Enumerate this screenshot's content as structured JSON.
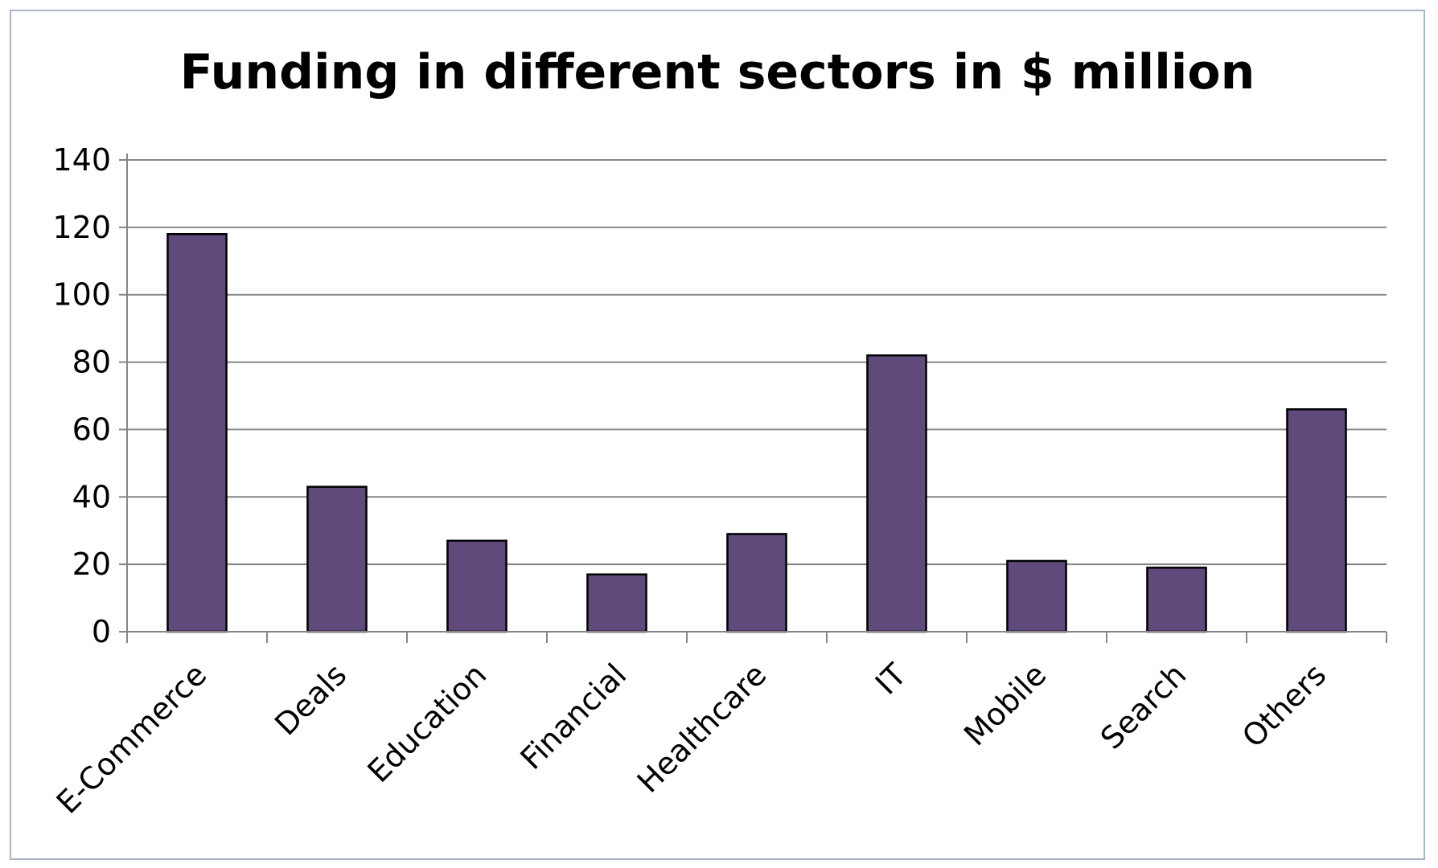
{
  "chart_data": {
    "type": "bar",
    "title": "Funding in different sectors in $ million",
    "xlabel": "",
    "ylabel": "",
    "categories": [
      "E-Commerce",
      "Deals",
      "Education",
      "Financial",
      "Healthcare",
      "IT",
      "Mobile",
      "Search",
      "Others"
    ],
    "values": [
      118,
      43,
      27,
      17,
      29,
      82,
      21,
      19,
      66
    ],
    "ylim": [
      0,
      140
    ],
    "yticks": [
      "0",
      "20",
      "40",
      "60",
      "80",
      "100",
      "120",
      "140"
    ],
    "grid": true,
    "legend": "none",
    "bar_color": "#604a7b",
    "bar_edge_color": "#000000",
    "grid_color": "#868686"
  }
}
